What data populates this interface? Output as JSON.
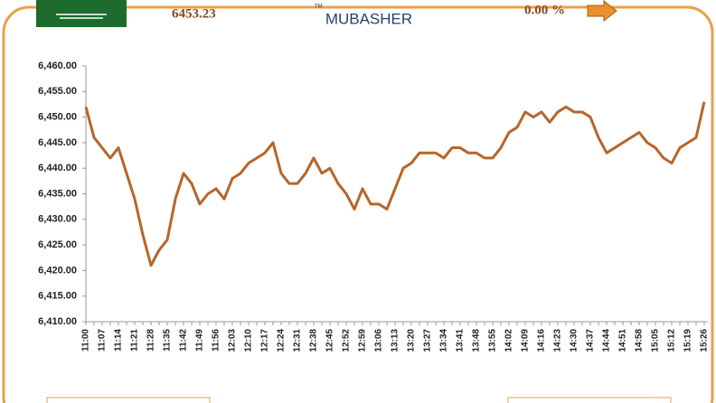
{
  "header": {
    "index_value": "6453.23",
    "logo": "MUBASHER",
    "trademark": "TM",
    "change": "0.00 %"
  },
  "chart_data": {
    "type": "line",
    "color": "#b8652a",
    "grid": false,
    "categories": [
      "11:00",
      null,
      "11:07",
      null,
      "11:14",
      null,
      "11:21",
      null,
      "11:28",
      null,
      "11:35",
      null,
      "11:42",
      null,
      "11:49",
      null,
      "11:56",
      null,
      "12:03",
      null,
      "12:10",
      null,
      "12:17",
      null,
      "12:24",
      null,
      "12:31",
      null,
      "12:38",
      null,
      "12:45",
      null,
      "12:52",
      null,
      "12:59",
      null,
      "13:06",
      null,
      "13:13",
      null,
      "13:20",
      null,
      "13:27",
      null,
      "13:34",
      null,
      "13:41",
      null,
      "13:48",
      null,
      "13:55",
      null,
      "14:02",
      null,
      "14:09",
      null,
      "14:16",
      null,
      "14:23",
      null,
      "14:30",
      null,
      "14:37",
      null,
      "14:44",
      null,
      "14:51",
      null,
      "14:58",
      null,
      "15:05",
      null,
      "15:12",
      null,
      "15:19",
      null,
      "15:26"
    ],
    "values": [
      6452,
      6446,
      6444,
      6442,
      6444,
      6439,
      6434,
      6427,
      6421,
      6424,
      6426,
      6434,
      6439,
      6437,
      6433,
      6435,
      6436,
      6434,
      6438,
      6439,
      6441,
      6442,
      6443,
      6445,
      6439,
      6437,
      6437,
      6439,
      6442,
      6439,
      6440,
      6437,
      6435,
      6432,
      6436,
      6433,
      6433,
      6432,
      6436,
      6440,
      6441,
      6443,
      6443,
      6443,
      6442,
      6444,
      6444,
      6443,
      6443,
      6442,
      6442,
      6444,
      6447,
      6448,
      6451,
      6450,
      6451,
      6449,
      6451,
      6452,
      6451,
      6451,
      6450,
      6446,
      6443,
      6444,
      6445,
      6446,
      6447,
      6445,
      6444,
      6442,
      6441,
      6444,
      6445,
      6446,
      6453
    ],
    "ylim": [
      6410,
      6460
    ],
    "yticks": [
      {
        "value": 6410,
        "label": "6,410.00"
      },
      {
        "value": 6415,
        "label": "6,415.00"
      },
      {
        "value": 6420,
        "label": "6,420.00"
      },
      {
        "value": 6425,
        "label": "6,425.00"
      },
      {
        "value": 6430,
        "label": "6,430.00"
      },
      {
        "value": 6435,
        "label": "6,435.00"
      },
      {
        "value": 6440,
        "label": "6,440.00"
      },
      {
        "value": 6445,
        "label": "6,445.00"
      },
      {
        "value": 6450,
        "label": "6,450.00"
      },
      {
        "value": 6455,
        "label": "6,455.00"
      },
      {
        "value": 6460,
        "label": "6,460.00"
      }
    ]
  }
}
